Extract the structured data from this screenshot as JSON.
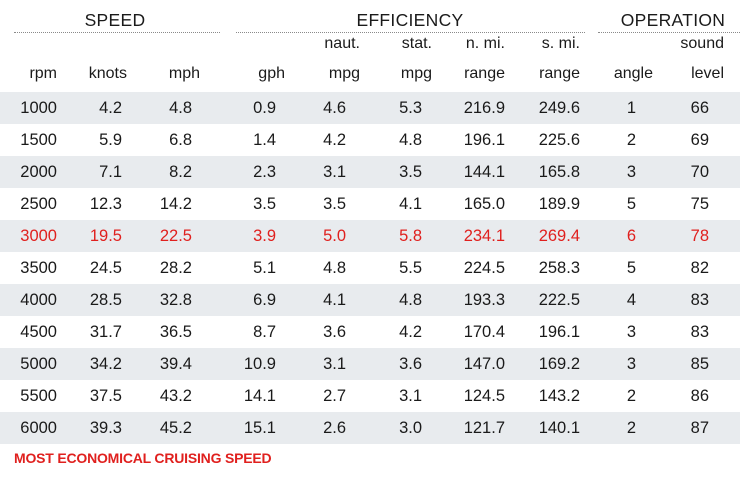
{
  "groups": {
    "speed": "SPEED",
    "efficiency": "EFFICIENCY",
    "operation": "OPERATION"
  },
  "headers": {
    "rpm": [
      "",
      "rpm"
    ],
    "knots": [
      "",
      "knots"
    ],
    "mph": [
      "",
      "mph"
    ],
    "gph": [
      "",
      "gph"
    ],
    "naut_mpg": [
      "naut.",
      "mpg"
    ],
    "stat_mpg": [
      "stat.",
      "mpg"
    ],
    "nmi_range": [
      "n. mi.",
      "range"
    ],
    "smi_range": [
      "s. mi.",
      "range"
    ],
    "angle": [
      "",
      "angle"
    ],
    "sound": [
      "sound",
      "level"
    ]
  },
  "rows": [
    [
      "1000",
      "4.2",
      "4.8",
      "0.9",
      "4.6",
      "5.3",
      "216.9",
      "249.6",
      "1",
      "66"
    ],
    [
      "1500",
      "5.9",
      "6.8",
      "1.4",
      "4.2",
      "4.8",
      "196.1",
      "225.6",
      "2",
      "69"
    ],
    [
      "2000",
      "7.1",
      "8.2",
      "2.3",
      "3.1",
      "3.5",
      "144.1",
      "165.8",
      "3",
      "70"
    ],
    [
      "2500",
      "12.3",
      "14.2",
      "3.5",
      "3.5",
      "4.1",
      "165.0",
      "189.9",
      "5",
      "75"
    ],
    [
      "3000",
      "19.5",
      "22.5",
      "3.9",
      "5.0",
      "5.8",
      "234.1",
      "269.4",
      "6",
      "78"
    ],
    [
      "3500",
      "24.5",
      "28.2",
      "5.1",
      "4.8",
      "5.5",
      "224.5",
      "258.3",
      "5",
      "82"
    ],
    [
      "4000",
      "28.5",
      "32.8",
      "6.9",
      "4.1",
      "4.8",
      "193.3",
      "222.5",
      "4",
      "83"
    ],
    [
      "4500",
      "31.7",
      "36.5",
      "8.7",
      "3.6",
      "4.2",
      "170.4",
      "196.1",
      "3",
      "83"
    ],
    [
      "5000",
      "34.2",
      "39.4",
      "10.9",
      "3.1",
      "3.6",
      "147.0",
      "169.2",
      "3",
      "85"
    ],
    [
      "5500",
      "37.5",
      "43.2",
      "14.1",
      "2.7",
      "3.1",
      "124.5",
      "143.2",
      "2",
      "86"
    ],
    [
      "6000",
      "39.3",
      "45.2",
      "15.1",
      "2.6",
      "3.0",
      "121.7",
      "140.1",
      "2",
      "87"
    ]
  ],
  "highlight_row": 4,
  "colors": {
    "highlight": "#e0201e",
    "shade": "#e8ebee"
  },
  "footnote": "MOST ECONOMICAL CRUISING SPEED"
}
